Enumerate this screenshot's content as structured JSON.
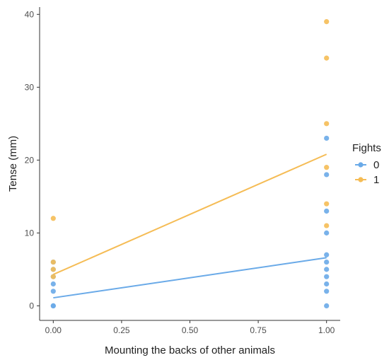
{
  "chart_data": {
    "type": "scatter",
    "xlabel": "Mounting the backs of other animals",
    "ylabel": "Tense (mm)",
    "xlim": [
      -0.05,
      1.05
    ],
    "ylim": [
      -2,
      41
    ],
    "x_ticks": [
      0,
      0.25,
      0.5,
      0.75,
      1
    ],
    "x_tick_labels": [
      "0.00",
      "0.25",
      "0.50",
      "0.75",
      "1.00"
    ],
    "y_ticks": [
      0,
      10,
      20,
      30,
      40
    ],
    "y_tick_labels": [
      "0",
      "10",
      "20",
      "30",
      "40"
    ],
    "grid": false,
    "legend": {
      "title": "Fights",
      "placement": "right"
    },
    "series": [
      {
        "name": "0",
        "color": "#6aaae8",
        "points": [
          [
            0,
            0
          ],
          [
            0,
            0
          ],
          [
            0,
            2
          ],
          [
            0,
            3
          ],
          [
            0,
            4
          ],
          [
            0,
            5
          ],
          [
            0,
            6
          ],
          [
            1,
            0
          ],
          [
            1,
            2
          ],
          [
            1,
            3
          ],
          [
            1,
            4
          ],
          [
            1,
            5
          ],
          [
            1,
            6
          ],
          [
            1,
            7
          ],
          [
            1,
            10
          ],
          [
            1,
            13
          ],
          [
            1,
            18
          ],
          [
            1,
            23
          ]
        ],
        "fit": {
          "x": [
            0,
            1
          ],
          "y": [
            1.1,
            6.6
          ]
        }
      },
      {
        "name": "1",
        "color": "#f5bc55",
        "points": [
          [
            0,
            4
          ],
          [
            0,
            5
          ],
          [
            0,
            6
          ],
          [
            0,
            12
          ],
          [
            1,
            11
          ],
          [
            1,
            14
          ],
          [
            1,
            19
          ],
          [
            1,
            25
          ],
          [
            1,
            34
          ],
          [
            1,
            39
          ]
        ],
        "fit": {
          "x": [
            0,
            1
          ],
          "y": [
            4.3,
            20.8
          ]
        }
      }
    ]
  }
}
